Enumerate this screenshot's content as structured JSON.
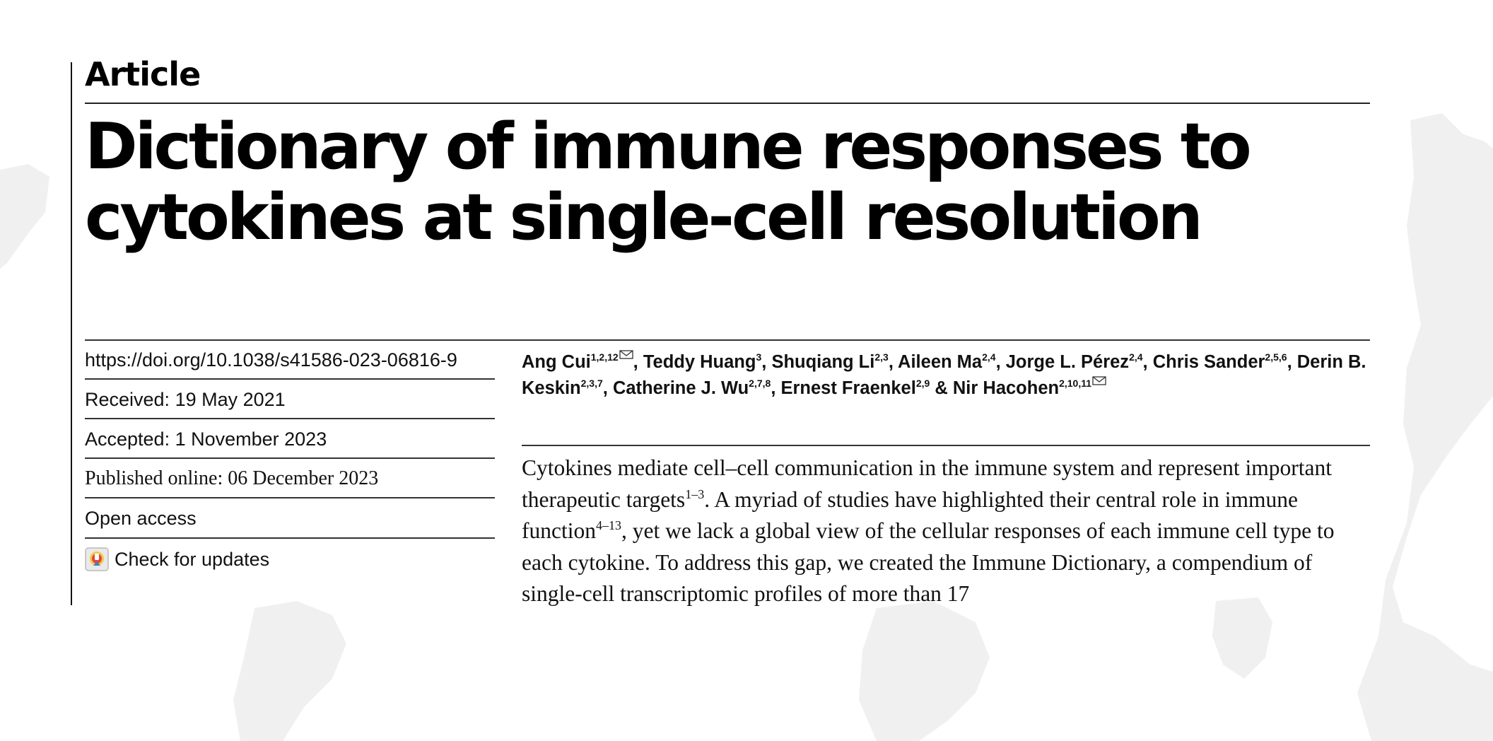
{
  "header": {
    "section_label": "Article",
    "title": "Dictionary of immune responses to cytokines at single-cell resolution"
  },
  "metadata": {
    "doi": "https://doi.org/10.1038/s41586-023-06816-9",
    "received": "Received: 19 May 2021",
    "accepted": "Accepted: 1 November 2023",
    "published": "Published online: 06 December 2023",
    "open_access": "Open access",
    "check_updates": "Check for updates"
  },
  "authors": [
    {
      "name": "Ang Cui",
      "aff": "1,2,12",
      "corresponding": true,
      "sep": ", "
    },
    {
      "name": "Teddy Huang",
      "aff": "3",
      "corresponding": false,
      "sep": ", "
    },
    {
      "name": "Shuqiang Li",
      "aff": "2,3",
      "corresponding": false,
      "sep": ", "
    },
    {
      "name": "Aileen Ma",
      "aff": "2,4",
      "corresponding": false,
      "sep": ", "
    },
    {
      "name": "Jorge L. Pérez",
      "aff": "2,4",
      "corresponding": false,
      "sep": ", "
    },
    {
      "name": "Chris Sander",
      "aff": "2,5,6",
      "corresponding": false,
      "sep": ", "
    },
    {
      "name": "Derin B. Keskin",
      "aff": "2,3,7",
      "corresponding": false,
      "sep": ", "
    },
    {
      "name": "Catherine J. Wu",
      "aff": "2,7,8",
      "corresponding": false,
      "sep": ", "
    },
    {
      "name": "Ernest Fraenkel",
      "aff": "2,9",
      "corresponding": false,
      "sep": " & "
    },
    {
      "name": "Nir Hacohen",
      "aff": "2,10,11",
      "corresponding": true,
      "sep": ""
    }
  ],
  "abstract": [
    {
      "text": "Cytokines mediate cell–cell communication in the immune system and represent important therapeutic targets"
    },
    {
      "sup": "1–3"
    },
    {
      "text": ". A myriad of studies have highlighted their central role in immune function"
    },
    {
      "sup": "4–13"
    },
    {
      "text": ", yet we lack a global view of the cellular responses of each immune cell type to each cytokine. To address this gap, we created the Immune Dictionary, a compendium of single-cell transcriptomic profiles of more than 17"
    }
  ],
  "icons": {
    "updates_icon": "check-for-updates-icon",
    "mail_icon": "envelope-icon"
  },
  "colors": {
    "text": "#111111",
    "rule": "#333333",
    "map": "#efefef"
  }
}
